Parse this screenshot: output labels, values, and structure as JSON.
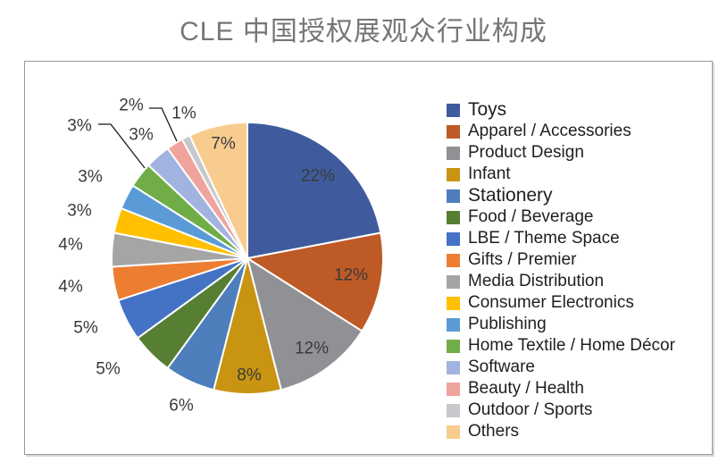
{
  "chart_data": {
    "type": "pie",
    "title": "CLE 中国授权展观众行业构成",
    "legend_position": "right",
    "direction": "clockwise",
    "start_angle_deg": 0,
    "total": 100,
    "categories": [
      "Toys",
      "Apparel / Accessories",
      "Product Design",
      "Infant",
      "Stationery",
      "Food / Beverage",
      "LBE / Theme Space",
      "Gifts / Premier",
      "Media Distribution",
      "Consumer Electronics",
      "Publishing",
      "Home Textile / Home Décor",
      "Software",
      "Beauty / Health",
      "Outdoor / Sports",
      "Others"
    ],
    "values": [
      22,
      12,
      12,
      8,
      6,
      5,
      5,
      4,
      4,
      3,
      3,
      3,
      3,
      2,
      1,
      7
    ],
    "labels": [
      "22%",
      "12%",
      "12%",
      "8%",
      "6%",
      "5%",
      "5%",
      "4%",
      "4%",
      "3%",
      "3%",
      "3%",
      "3%",
      "2%",
      "1%",
      "7%"
    ],
    "colors": [
      "#3F5B9E",
      "#BE5A26",
      "#8F9194",
      "#C99411",
      "#4E7EBB",
      "#567F34",
      "#4472C4",
      "#ED7D31",
      "#A5A5A5",
      "#FFC000",
      "#5B9BD5",
      "#70AD47",
      "#A3B3DF",
      "#EEA49C",
      "#C6C8CC",
      "#F8CC8E"
    ]
  }
}
